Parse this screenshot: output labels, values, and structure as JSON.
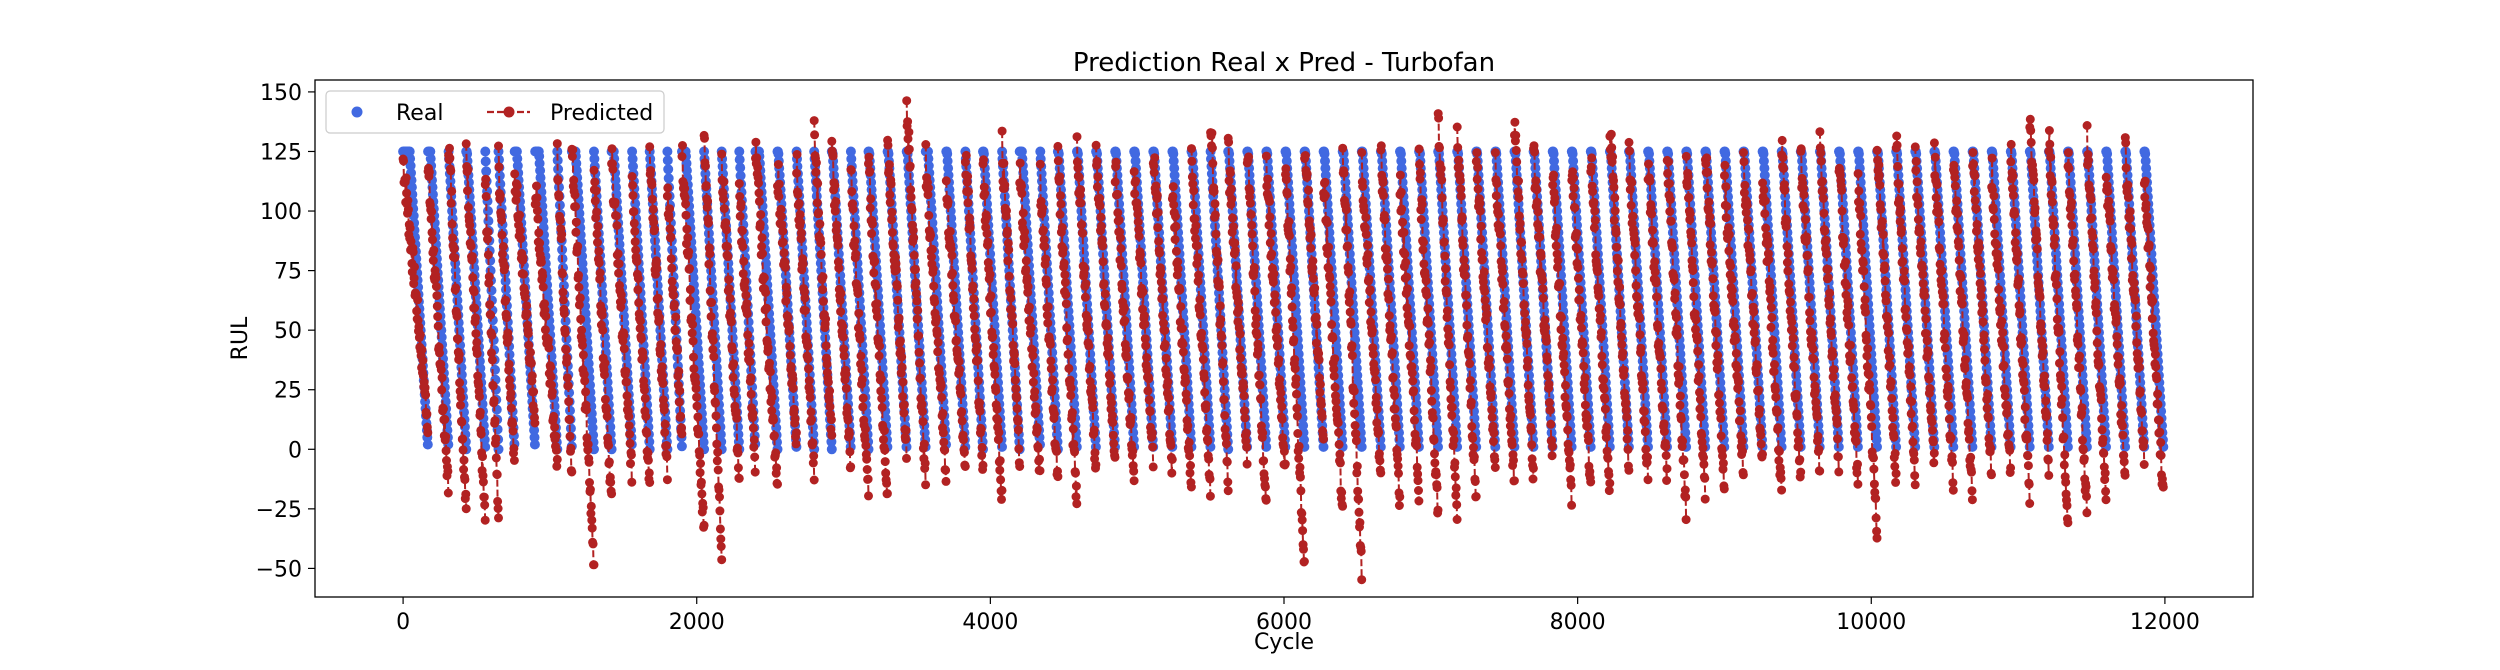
{
  "chart_data": {
    "type": "scatter",
    "title": "Prediction Real x Pred - Turbofan",
    "xlabel": "Cycle",
    "ylabel": "RUL",
    "xlim": [
      -600,
      12600
    ],
    "ylim": [
      -62,
      155
    ],
    "xticks": [
      0,
      2000,
      4000,
      6000,
      8000,
      10000,
      12000
    ],
    "yticks": [
      -50,
      -25,
      0,
      25,
      50,
      75,
      100,
      125,
      150
    ],
    "xtick_labels": [
      "0",
      "2000",
      "4000",
      "6000",
      "8000",
      "10000",
      "12000"
    ],
    "ytick_labels": [
      "−50",
      "−25",
      "0",
      "25",
      "50",
      "75",
      "100",
      "125",
      "150"
    ],
    "grid": false,
    "legend_position": "top-left",
    "legend_ncol": 2,
    "series": [
      {
        "name": "Real",
        "style": "markers",
        "color": "#4169e1",
        "cap": 125,
        "cycle_ends": [
          170,
          310,
          430,
          560,
          650,
          760,
          900,
          1050,
          1150,
          1300,
          1420,
          1560,
          1680,
          1800,
          1900,
          2050,
          2170,
          2290,
          2400,
          2550,
          2680,
          2800,
          2920,
          3050,
          3170,
          3300,
          3430,
          3560,
          3700,
          3830,
          3950,
          4080,
          4200,
          4340,
          4460,
          4590,
          4720,
          4850,
          4980,
          5110,
          5240,
          5370,
          5500,
          5620,
          5750,
          5880,
          6010,
          6140,
          6270,
          6400,
          6530,
          6660,
          6790,
          6920,
          7050,
          7180,
          7310,
          7440,
          7570,
          7700,
          7830,
          7960,
          8090,
          8220,
          8350,
          8480,
          8610,
          8740,
          8870,
          9000,
          9130,
          9260,
          9390,
          9520,
          9650,
          9780,
          9910,
          10040,
          10170,
          10300,
          10430,
          10560,
          10690,
          10820,
          10950,
          11080,
          11210,
          11340,
          11470,
          11600,
          11730,
          11860,
          11990
        ]
      },
      {
        "name": "Predicted",
        "style": "dashed-line-markers",
        "color": "#b22222",
        "peaks": [
          122,
          118,
          131,
          126,
          112,
          121,
          117,
          110,
          125,
          127,
          119,
          123,
          115,
          121,
          111,
          124,
          133,
          122,
          109,
          126,
          118,
          120,
          131,
          125,
          113,
          119,
          128,
          145,
          121,
          110,
          124,
          118,
          126,
          117,
          113,
          121,
          127,
          124,
          119,
          116,
          128,
          113,
          121,
          137,
          124,
          126,
          118,
          121,
          129,
          115,
          127,
          119,
          125,
          112,
          121,
          138,
          133,
          124,
          120,
          137,
          124,
          116,
          119,
          122,
          136,
          124,
          118,
          126,
          122,
          128,
          115,
          121,
          117,
          125,
          123,
          129,
          120,
          114,
          130,
          127,
          119,
          123,
          121,
          125,
          118,
          128,
          138,
          133,
          125,
          129,
          119,
          126,
          115
        ],
        "troughs": [
          10,
          -18,
          -27,
          -31,
          -28,
          -10,
          12,
          -6,
          -12,
          -48,
          -23,
          -12,
          -16,
          -8,
          4,
          -35,
          -44,
          -12,
          -7,
          -18,
          3,
          -10,
          5,
          -8,
          -20,
          -21,
          0,
          -15,
          -12,
          -8,
          -8,
          -21,
          -4,
          -12,
          -15,
          -24,
          -10,
          -6,
          -14,
          -4,
          -10,
          -16,
          -20,
          -13,
          -3,
          -27,
          -12,
          -53,
          2,
          -28,
          -53,
          -13,
          -24,
          -18,
          -27,
          -29,
          -24,
          -8,
          -16,
          -13,
          -2,
          -22,
          -16,
          -18,
          -8,
          -12,
          -13,
          -28,
          -20,
          -17,
          -10,
          -7,
          -20,
          -15,
          -10,
          -6,
          -15,
          -37,
          -14,
          -12,
          -6,
          -16,
          -20,
          -10,
          -12,
          -22,
          -8,
          -35,
          -28,
          -22,
          -12,
          -5,
          -20
        ]
      }
    ]
  }
}
